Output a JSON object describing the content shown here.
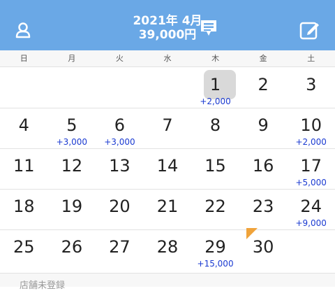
{
  "header": {
    "month": "2021年 4月",
    "total": "39,000円",
    "left_icon": "person-icon",
    "message_icon": "message-icon",
    "edit_icon": "edit-icon"
  },
  "weekdays": [
    "日",
    "月",
    "火",
    "水",
    "木",
    "金",
    "土"
  ],
  "rows": [
    [
      {
        "day": "",
        "amount": ""
      },
      {
        "day": "",
        "amount": ""
      },
      {
        "day": "",
        "amount": ""
      },
      {
        "day": "",
        "amount": ""
      },
      {
        "day": "1",
        "amount": "+2,000",
        "selected": true
      },
      {
        "day": "2",
        "amount": ""
      },
      {
        "day": "3",
        "amount": ""
      }
    ],
    [
      {
        "day": "4",
        "amount": ""
      },
      {
        "day": "5",
        "amount": "+3,000"
      },
      {
        "day": "6",
        "amount": "+3,000"
      },
      {
        "day": "7",
        "amount": ""
      },
      {
        "day": "8",
        "amount": ""
      },
      {
        "day": "9",
        "amount": ""
      },
      {
        "day": "10",
        "amount": "+2,000"
      }
    ],
    [
      {
        "day": "11",
        "amount": ""
      },
      {
        "day": "12",
        "amount": ""
      },
      {
        "day": "13",
        "amount": ""
      },
      {
        "day": "14",
        "amount": ""
      },
      {
        "day": "15",
        "amount": ""
      },
      {
        "day": "16",
        "amount": ""
      },
      {
        "day": "17",
        "amount": "+5,000"
      }
    ],
    [
      {
        "day": "18",
        "amount": ""
      },
      {
        "day": "19",
        "amount": ""
      },
      {
        "day": "20",
        "amount": ""
      },
      {
        "day": "21",
        "amount": ""
      },
      {
        "day": "22",
        "amount": ""
      },
      {
        "day": "23",
        "amount": ""
      },
      {
        "day": "24",
        "amount": "+9,000"
      }
    ],
    [
      {
        "day": "25",
        "amount": ""
      },
      {
        "day": "26",
        "amount": ""
      },
      {
        "day": "27",
        "amount": ""
      },
      {
        "day": "28",
        "amount": ""
      },
      {
        "day": "29",
        "amount": "+15,000"
      },
      {
        "day": "30",
        "amount": "",
        "flag": true
      },
      {
        "day": "",
        "amount": ""
      }
    ]
  ],
  "bottom_text": "店舗未登録",
  "colors": {
    "header_bg": "#6aa8e6",
    "amount_text": "#1a3ad1",
    "today_bg": "#d9d9d9",
    "flag": "#f0a33a"
  }
}
